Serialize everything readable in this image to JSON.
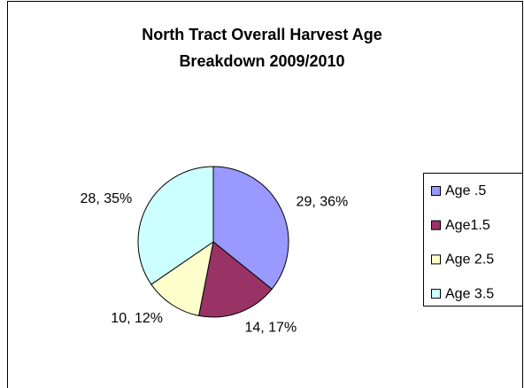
{
  "chart_data": {
    "type": "pie",
    "title": "North Tract Overall Harvest Age Breakdown 2009/2010",
    "title_lines": [
      "North Tract Overall Harvest Age",
      "Breakdown 2009/2010"
    ],
    "categories": [
      "Age .5",
      "Age1.5",
      "Age 2.5",
      "Age 3.5"
    ],
    "values": [
      29,
      14,
      10,
      28
    ],
    "value_labels": [
      "29, 36%",
      "14, 17%",
      "10, 12%",
      "28, 35%"
    ],
    "colors": [
      "#9999ff",
      "#993366",
      "#ffffcc",
      "#ccffff"
    ],
    "legend": "right"
  }
}
